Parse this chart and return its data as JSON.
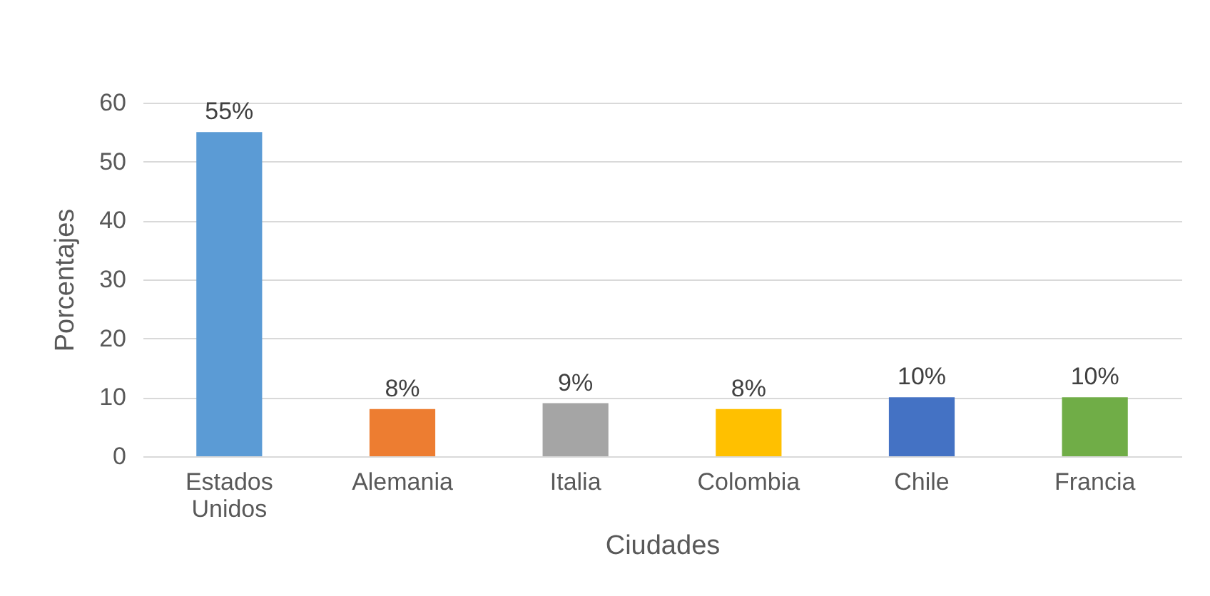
{
  "chart_data": {
    "type": "bar",
    "xlabel": "Ciudades",
    "ylabel": "Porcentajes",
    "categories": [
      "Estados Unidos",
      "Alemania",
      "Italia",
      "Colombia",
      "Chile",
      "Francia"
    ],
    "values": [
      55,
      8,
      9,
      8,
      10,
      10
    ],
    "colors": [
      "#5b9bd5",
      "#ed7d31",
      "#a5a5a5",
      "#ffc000",
      "#4472c4",
      "#70ad47"
    ],
    "value_labels": [
      "55%",
      "8%",
      "9%",
      "8%",
      "10%",
      "10%"
    ],
    "ylim": [
      0,
      60
    ],
    "yticks": [
      0,
      10,
      20,
      30,
      40,
      50,
      60
    ],
    "grid": "y",
    "legend": false
  }
}
